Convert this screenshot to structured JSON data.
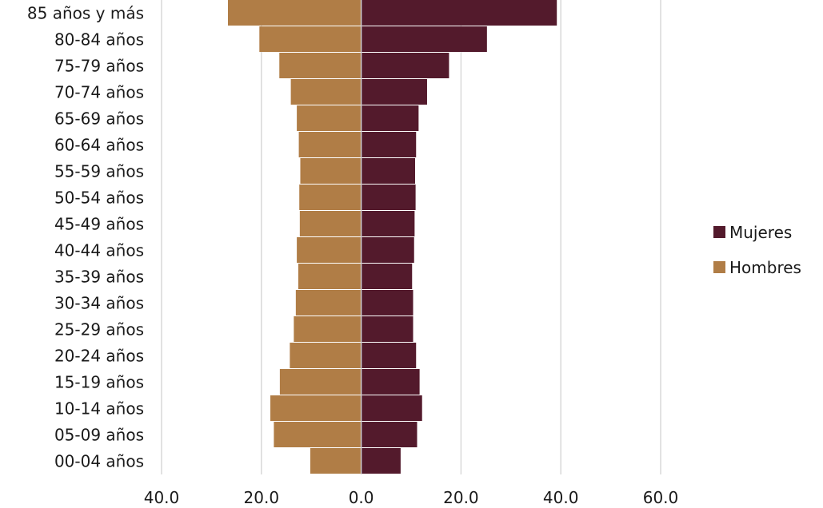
{
  "chart_data": {
    "type": "bar",
    "orientation": "horizontal",
    "layout": "population-pyramid",
    "categories": [
      "85 años y más",
      "80-84 años",
      "75-79 años",
      "70-74 años",
      "65-69 años",
      "60-64 años",
      "55-59 años",
      "50-54 años",
      "45-49 años",
      "40-44 años",
      "35-39 años",
      "30-34 años",
      "25-29 años",
      "20-24 años",
      "15-19 años",
      "10-14 años",
      "05-09 años",
      "00-04 años"
    ],
    "series": [
      {
        "name": "Mujeres",
        "color": "#531a2c",
        "values": [
          39.2,
          25.2,
          17.6,
          13.2,
          11.5,
          11.0,
          10.8,
          10.9,
          10.7,
          10.6,
          10.2,
          10.4,
          10.4,
          11.0,
          11.7,
          12.2,
          11.2,
          7.9
        ]
      },
      {
        "name": "Hombres",
        "color": "#b07d46",
        "values": [
          26.7,
          20.4,
          16.4,
          14.1,
          12.9,
          12.5,
          12.2,
          12.4,
          12.3,
          12.9,
          12.6,
          13.1,
          13.5,
          14.3,
          16.3,
          18.2,
          17.5,
          10.2
        ]
      }
    ],
    "xlim": [
      -40,
      60
    ],
    "xticks": [
      "40.0",
      "20.0",
      "0.0",
      "20.0",
      "40.0",
      "60.0"
    ],
    "xtick_values": [
      -40,
      -20,
      0,
      20,
      40,
      60
    ],
    "legend": {
      "placement": "right",
      "entries": [
        "Mujeres",
        "Hombres"
      ]
    },
    "grid": true,
    "title": "",
    "xlabel": "",
    "ylabel": ""
  }
}
